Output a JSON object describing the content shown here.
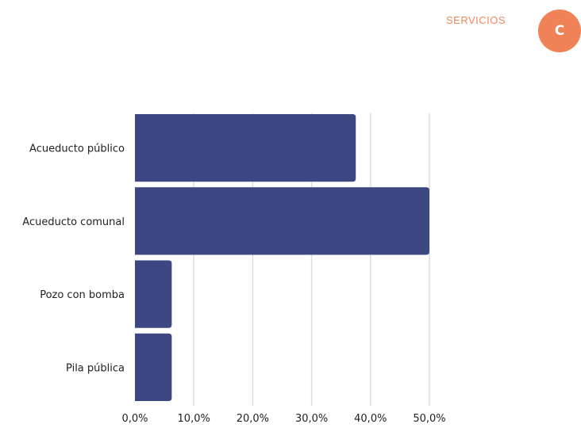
{
  "header": {
    "section_label": "SERVICIOS",
    "badge_letter": "C"
  },
  "colors": {
    "bar": "#3d4882",
    "grid": "#dedede",
    "accent": "#f08257"
  },
  "chart_data": {
    "type": "bar",
    "orientation": "horizontal",
    "categories": [
      "Acueducto público",
      "Acueducto comunal",
      "Pozo con bomba",
      "Pila pública"
    ],
    "values": [
      37.5,
      50.0,
      6.25,
      6.25
    ],
    "xlim": [
      0,
      50
    ],
    "ticks": [
      0,
      10,
      20,
      30,
      40,
      50
    ],
    "tick_labels": [
      "0,0%",
      "10,0%",
      "20,0%",
      "30,0%",
      "40,0%",
      "50,0%"
    ],
    "grid": true,
    "title": "",
    "xlabel": "",
    "ylabel": ""
  }
}
